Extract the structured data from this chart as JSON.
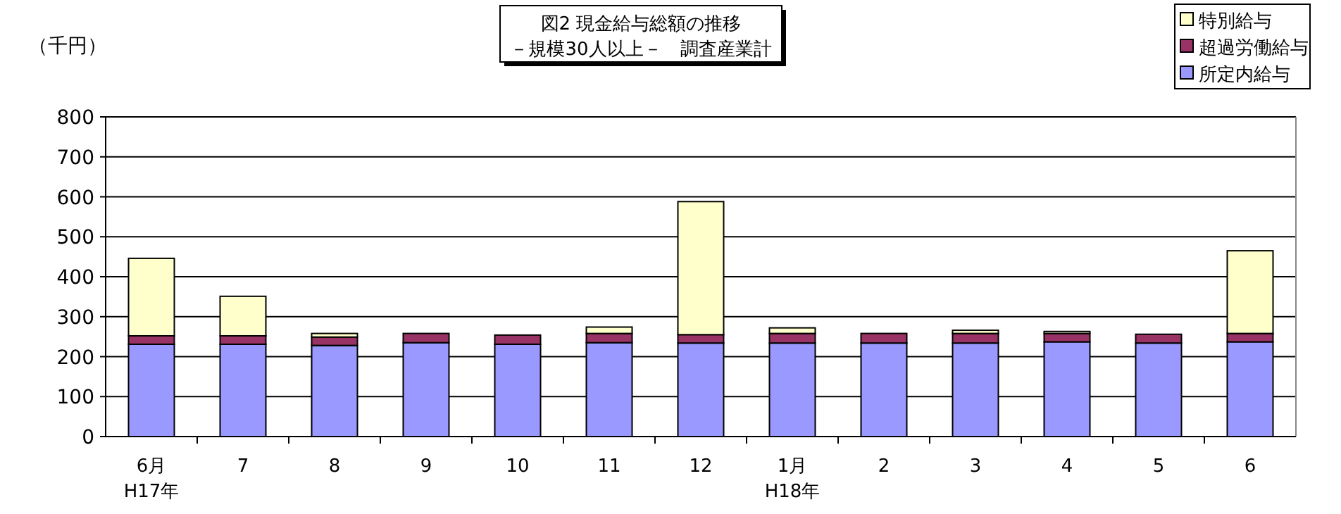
{
  "chart_data": {
    "type": "bar",
    "stacked": true,
    "title": "図2  現金給与総額の推移",
    "subtitle": "－規模30人以上－　調査産業計",
    "ylabel": "（千円）",
    "categories": [
      "6月\nH17年",
      "7",
      "8",
      "9",
      "10",
      "11",
      "12",
      "1月\nH18年",
      "2",
      "3",
      "4",
      "5",
      "6"
    ],
    "series": [
      {
        "name": "所定内給与",
        "color": "#9999ff",
        "values": [
          231,
          231,
          228,
          235,
          231,
          235,
          234,
          234,
          234,
          234,
          237,
          234,
          237
        ]
      },
      {
        "name": "超過労働給与",
        "color": "#993366",
        "values": [
          21,
          21,
          21,
          23,
          23,
          23,
          21,
          24,
          24,
          24,
          21,
          22,
          21
        ]
      },
      {
        "name": "特別給与",
        "color": "#ffffcc",
        "values": [
          194,
          99,
          9,
          null,
          null,
          16,
          333,
          14,
          null,
          8,
          5,
          null,
          207
        ]
      }
    ],
    "ylim": [
      0,
      800
    ],
    "yticks": [
      0,
      100,
      200,
      300,
      400,
      500,
      600,
      700,
      800
    ],
    "grid": "y",
    "legend": "top right"
  }
}
